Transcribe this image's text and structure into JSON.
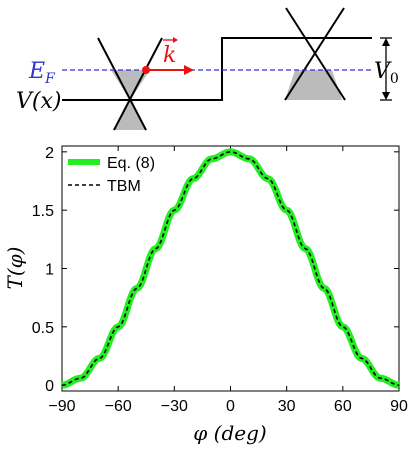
{
  "schematic": {
    "fermi_label": "E",
    "fermi_subscript": "F",
    "potential_label": "V(x)",
    "wavevector_label": "k",
    "step_label": "V",
    "step_subscript": "0",
    "colors": {
      "fermi_line": "#3333cc",
      "wavevector": "#ee1111",
      "filled": "#bbbbbb"
    }
  },
  "chart_data": {
    "type": "line",
    "xlabel": "φ (deg)",
    "ylabel": "T(φ)",
    "xlim": [
      -90,
      90
    ],
    "ylim": [
      -0.05,
      2.05
    ],
    "xticks": [
      -90,
      -60,
      -30,
      0,
      30,
      60,
      90
    ],
    "xtick_labels": [
      "−90",
      "−60",
      "−30",
      "0",
      "30",
      "60",
      "90"
    ],
    "yticks": [
      0,
      0.5,
      1,
      1.5,
      2
    ],
    "ytick_labels": [
      "0",
      "0.5",
      "1",
      "1.5",
      "2"
    ],
    "grid": false,
    "legend_position": "top-left",
    "x": [
      -90,
      -80,
      -70,
      -60,
      -50,
      -40,
      -30,
      -20,
      -10,
      0,
      10,
      20,
      30,
      40,
      50,
      60,
      70,
      80,
      90
    ],
    "series": [
      {
        "name": "Eq. (8)",
        "color": "#22ee22",
        "style": "solid-thick",
        "values": [
          0,
          0.06,
          0.23,
          0.5,
          0.83,
          1.17,
          1.5,
          1.77,
          1.94,
          2.0,
          1.94,
          1.77,
          1.5,
          1.17,
          0.83,
          0.5,
          0.23,
          0.06,
          0
        ]
      },
      {
        "name": "TBM",
        "color": "#000000",
        "style": "dashed",
        "values": [
          0,
          0.06,
          0.23,
          0.5,
          0.83,
          1.17,
          1.5,
          1.77,
          1.94,
          2.0,
          1.94,
          1.77,
          1.5,
          1.17,
          0.83,
          0.5,
          0.23,
          0.06,
          0
        ]
      }
    ]
  }
}
